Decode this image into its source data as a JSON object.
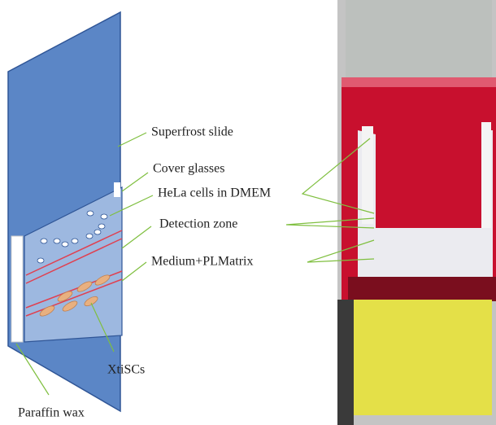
{
  "labels": [
    "Superfrost slide",
    "Cover glasses",
    "HeLa cells in DMEM",
    "Detection zone",
    "Medium+PLMatrix",
    "XtiSCs",
    "Paraffin wax"
  ]
}
